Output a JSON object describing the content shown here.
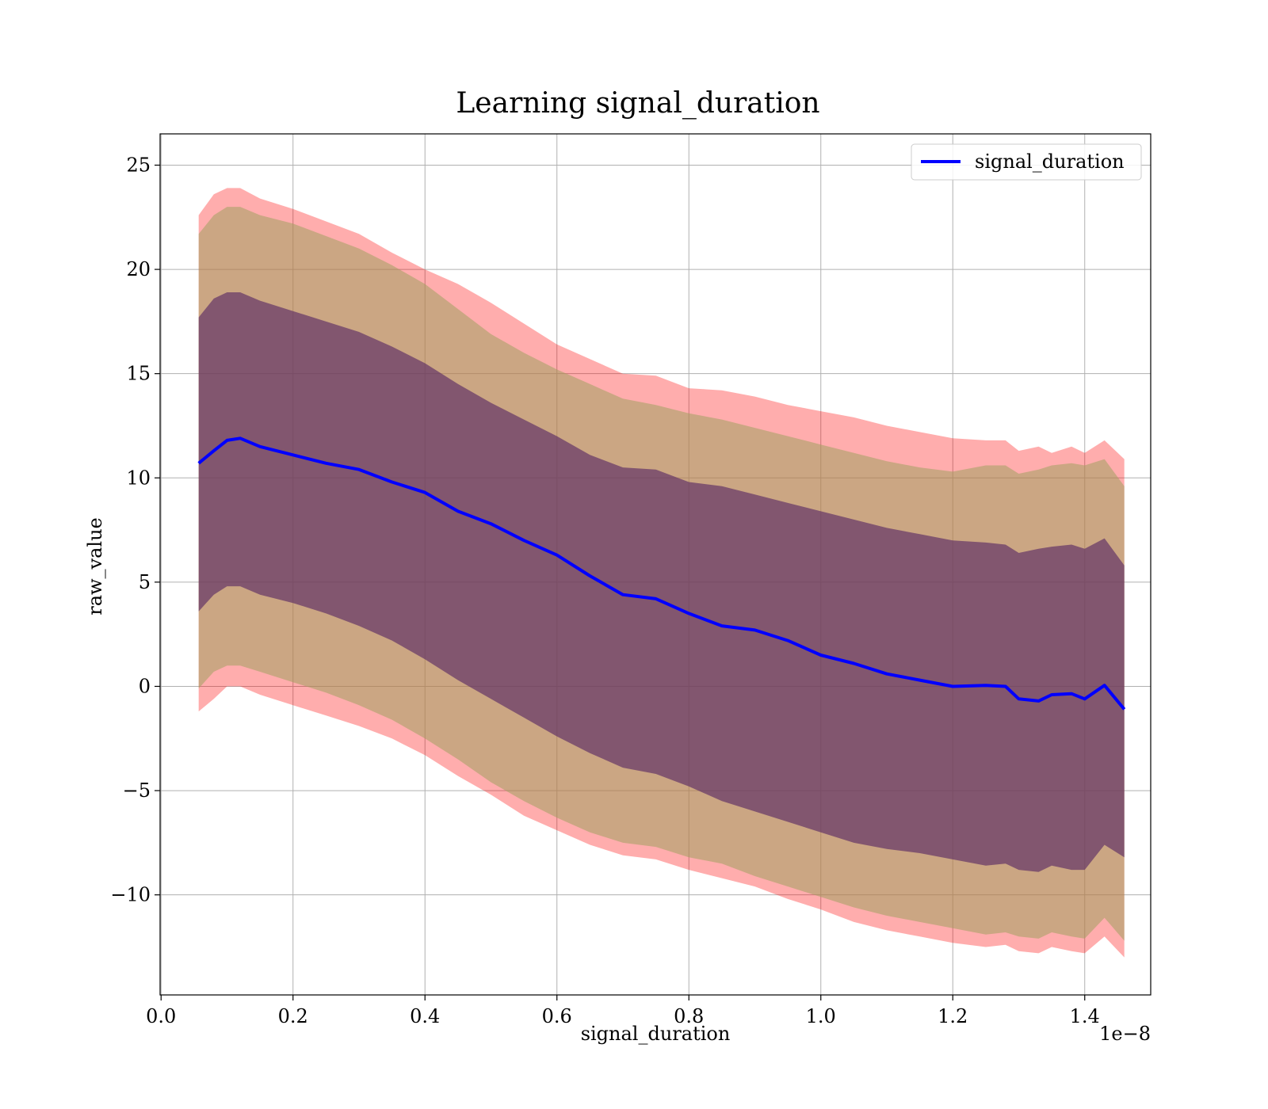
{
  "chart_data": {
    "type": "area",
    "title": "Learning signal_duration",
    "xlabel": "signal_duration",
    "ylabel": "raw_value",
    "x_offset_text": "1e−8",
    "xlim": [
      -0.0015,
      1.5
    ],
    "ylim": [
      -14.8,
      26.5
    ],
    "x_ticks": [
      0.0,
      0.2,
      0.4,
      0.6,
      0.8,
      1.0,
      1.2,
      1.4
    ],
    "x_tick_labels": [
      "0.0",
      "0.2",
      "0.4",
      "0.6",
      "0.8",
      "1.0",
      "1.2",
      "1.4"
    ],
    "y_ticks": [
      -10,
      -5,
      0,
      5,
      10,
      15,
      20,
      25
    ],
    "y_tick_labels": [
      "−10",
      "−5",
      "0",
      "5",
      "10",
      "15",
      "20",
      "25"
    ],
    "grid": true,
    "legend_position": "upper right",
    "legend_entries": [
      "signal_duration"
    ],
    "colors": {
      "line": "#0000ff",
      "band_outer": "#ff0000",
      "band_middle": "#a0a060",
      "band_inner": "#5a2b64",
      "grid": "#b0b0b0"
    },
    "x": [
      0.057,
      0.08,
      0.1,
      0.12,
      0.15,
      0.2,
      0.25,
      0.3,
      0.35,
      0.4,
      0.45,
      0.5,
      0.55,
      0.6,
      0.65,
      0.7,
      0.75,
      0.8,
      0.85,
      0.9,
      0.95,
      1.0,
      1.05,
      1.1,
      1.15,
      1.2,
      1.25,
      1.28,
      1.3,
      1.33,
      1.35,
      1.38,
      1.4,
      1.43,
      1.46
    ],
    "series": [
      {
        "name": "signal_duration",
        "values": [
          10.7,
          11.3,
          11.8,
          11.9,
          11.5,
          11.1,
          10.7,
          10.4,
          9.8,
          9.3,
          8.4,
          7.8,
          7.0,
          6.3,
          5.3,
          4.4,
          4.2,
          3.5,
          2.9,
          2.7,
          2.2,
          1.5,
          1.1,
          0.6,
          0.3,
          0.0,
          0.05,
          0.0,
          -0.6,
          -0.7,
          -0.4,
          -0.35,
          -0.6,
          0.05,
          -1.1
        ]
      }
    ],
    "bands": [
      {
        "level": "outer",
        "upper": [
          22.6,
          23.6,
          23.9,
          23.9,
          23.4,
          22.9,
          22.3,
          21.7,
          20.8,
          20.0,
          19.3,
          18.4,
          17.4,
          16.4,
          15.7,
          15.0,
          14.9,
          14.3,
          14.2,
          13.9,
          13.5,
          13.2,
          12.9,
          12.5,
          12.2,
          11.9,
          11.8,
          11.8,
          11.3,
          11.5,
          11.2,
          11.5,
          11.2,
          11.8,
          10.9
        ],
        "lower": [
          -1.2,
          -0.6,
          0.0,
          0.0,
          -0.4,
          -0.9,
          -1.4,
          -1.9,
          -2.5,
          -3.3,
          -4.3,
          -5.2,
          -6.2,
          -6.9,
          -7.6,
          -8.1,
          -8.3,
          -8.8,
          -9.2,
          -9.6,
          -10.2,
          -10.7,
          -11.3,
          -11.7,
          -12.0,
          -12.3,
          -12.5,
          -12.4,
          -12.7,
          -12.8,
          -12.5,
          -12.7,
          -12.8,
          -12.0,
          -13.0
        ]
      },
      {
        "level": "middle",
        "upper": [
          21.7,
          22.6,
          23.0,
          23.0,
          22.6,
          22.2,
          21.6,
          21.0,
          20.2,
          19.3,
          18.1,
          16.9,
          16.0,
          15.2,
          14.5,
          13.8,
          13.5,
          13.1,
          12.8,
          12.4,
          12.0,
          11.6,
          11.2,
          10.8,
          10.5,
          10.3,
          10.6,
          10.6,
          10.2,
          10.4,
          10.6,
          10.7,
          10.6,
          10.9,
          9.6
        ],
        "lower": [
          -0.1,
          0.7,
          1.0,
          1.0,
          0.7,
          0.2,
          -0.3,
          -0.9,
          -1.6,
          -2.5,
          -3.5,
          -4.6,
          -5.5,
          -6.3,
          -7.0,
          -7.5,
          -7.7,
          -8.2,
          -8.5,
          -9.1,
          -9.6,
          -10.1,
          -10.6,
          -11.0,
          -11.3,
          -11.6,
          -11.9,
          -11.8,
          -12.0,
          -12.1,
          -11.8,
          -12.0,
          -12.1,
          -11.1,
          -12.2
        ]
      },
      {
        "level": "inner",
        "upper": [
          17.7,
          18.6,
          18.9,
          18.9,
          18.5,
          18.0,
          17.5,
          17.0,
          16.3,
          15.5,
          14.5,
          13.6,
          12.8,
          12.0,
          11.1,
          10.5,
          10.4,
          9.8,
          9.6,
          9.2,
          8.8,
          8.4,
          8.0,
          7.6,
          7.3,
          7.0,
          6.9,
          6.8,
          6.4,
          6.6,
          6.7,
          6.8,
          6.6,
          7.1,
          5.8
        ],
        "lower": [
          3.6,
          4.4,
          4.8,
          4.8,
          4.4,
          4.0,
          3.5,
          2.9,
          2.2,
          1.3,
          0.3,
          -0.6,
          -1.5,
          -2.4,
          -3.2,
          -3.9,
          -4.2,
          -4.8,
          -5.5,
          -6.0,
          -6.5,
          -7.0,
          -7.5,
          -7.8,
          -8.0,
          -8.3,
          -8.6,
          -8.5,
          -8.8,
          -8.9,
          -8.6,
          -8.8,
          -8.8,
          -7.6,
          -8.2
        ]
      }
    ]
  }
}
